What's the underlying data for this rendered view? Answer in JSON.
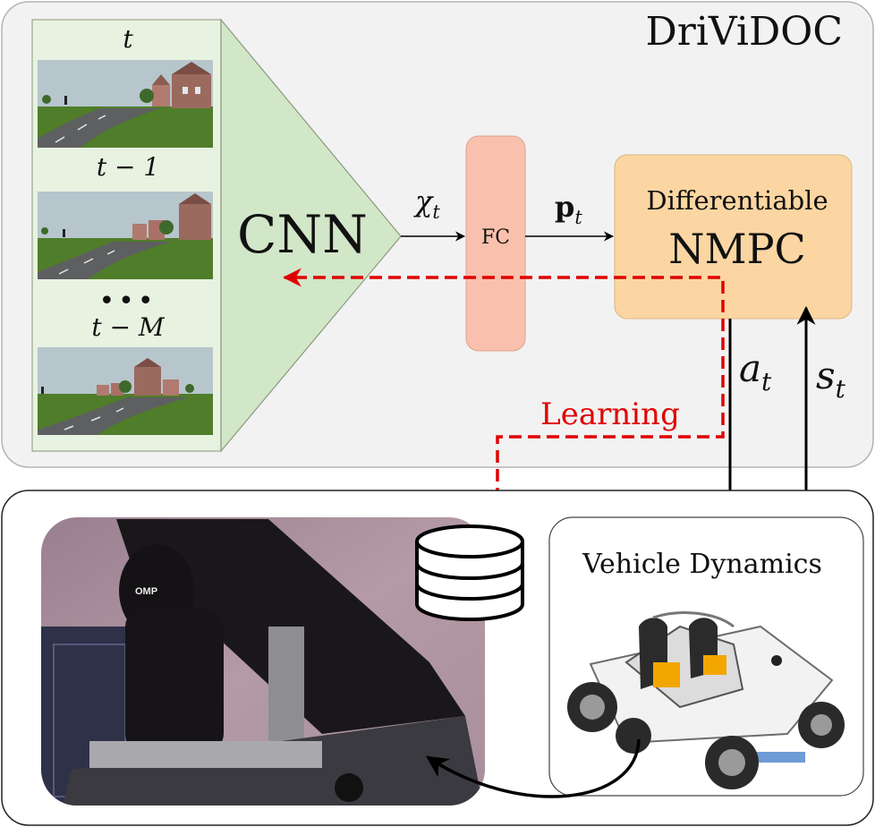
{
  "title": "DriViDOC",
  "frames": {
    "labels": [
      "t",
      "t − 1",
      "t − M"
    ],
    "ellipsis": "•••"
  },
  "cnn": {
    "label": "CNN"
  },
  "fc": {
    "label": "FC"
  },
  "nmpc": {
    "line1": "Differentiable",
    "line2": "NMPC"
  },
  "signals": {
    "chi": "χ",
    "chi_sub": "t",
    "p": "p",
    "p_sub": "t",
    "a": "a",
    "a_sub": "t",
    "s": "s",
    "s_sub": "t"
  },
  "learning": {
    "label": "Learning"
  },
  "vehicle": {
    "label": "Vehicle Dynamics"
  },
  "simulator": {
    "seat_brand": "OMP"
  },
  "colors": {
    "outer_panel": "#f2f2f2",
    "frames_panel": "#e8f2e0",
    "cnn_triangle": "#d2e6c8",
    "fc_box": "#f9c1ad",
    "nmpc_box": "#fbd6a2",
    "learning": "#e00000",
    "sky": "#b6c6cc",
    "grass": "#4f7d2a",
    "road": "#5e5f61"
  }
}
